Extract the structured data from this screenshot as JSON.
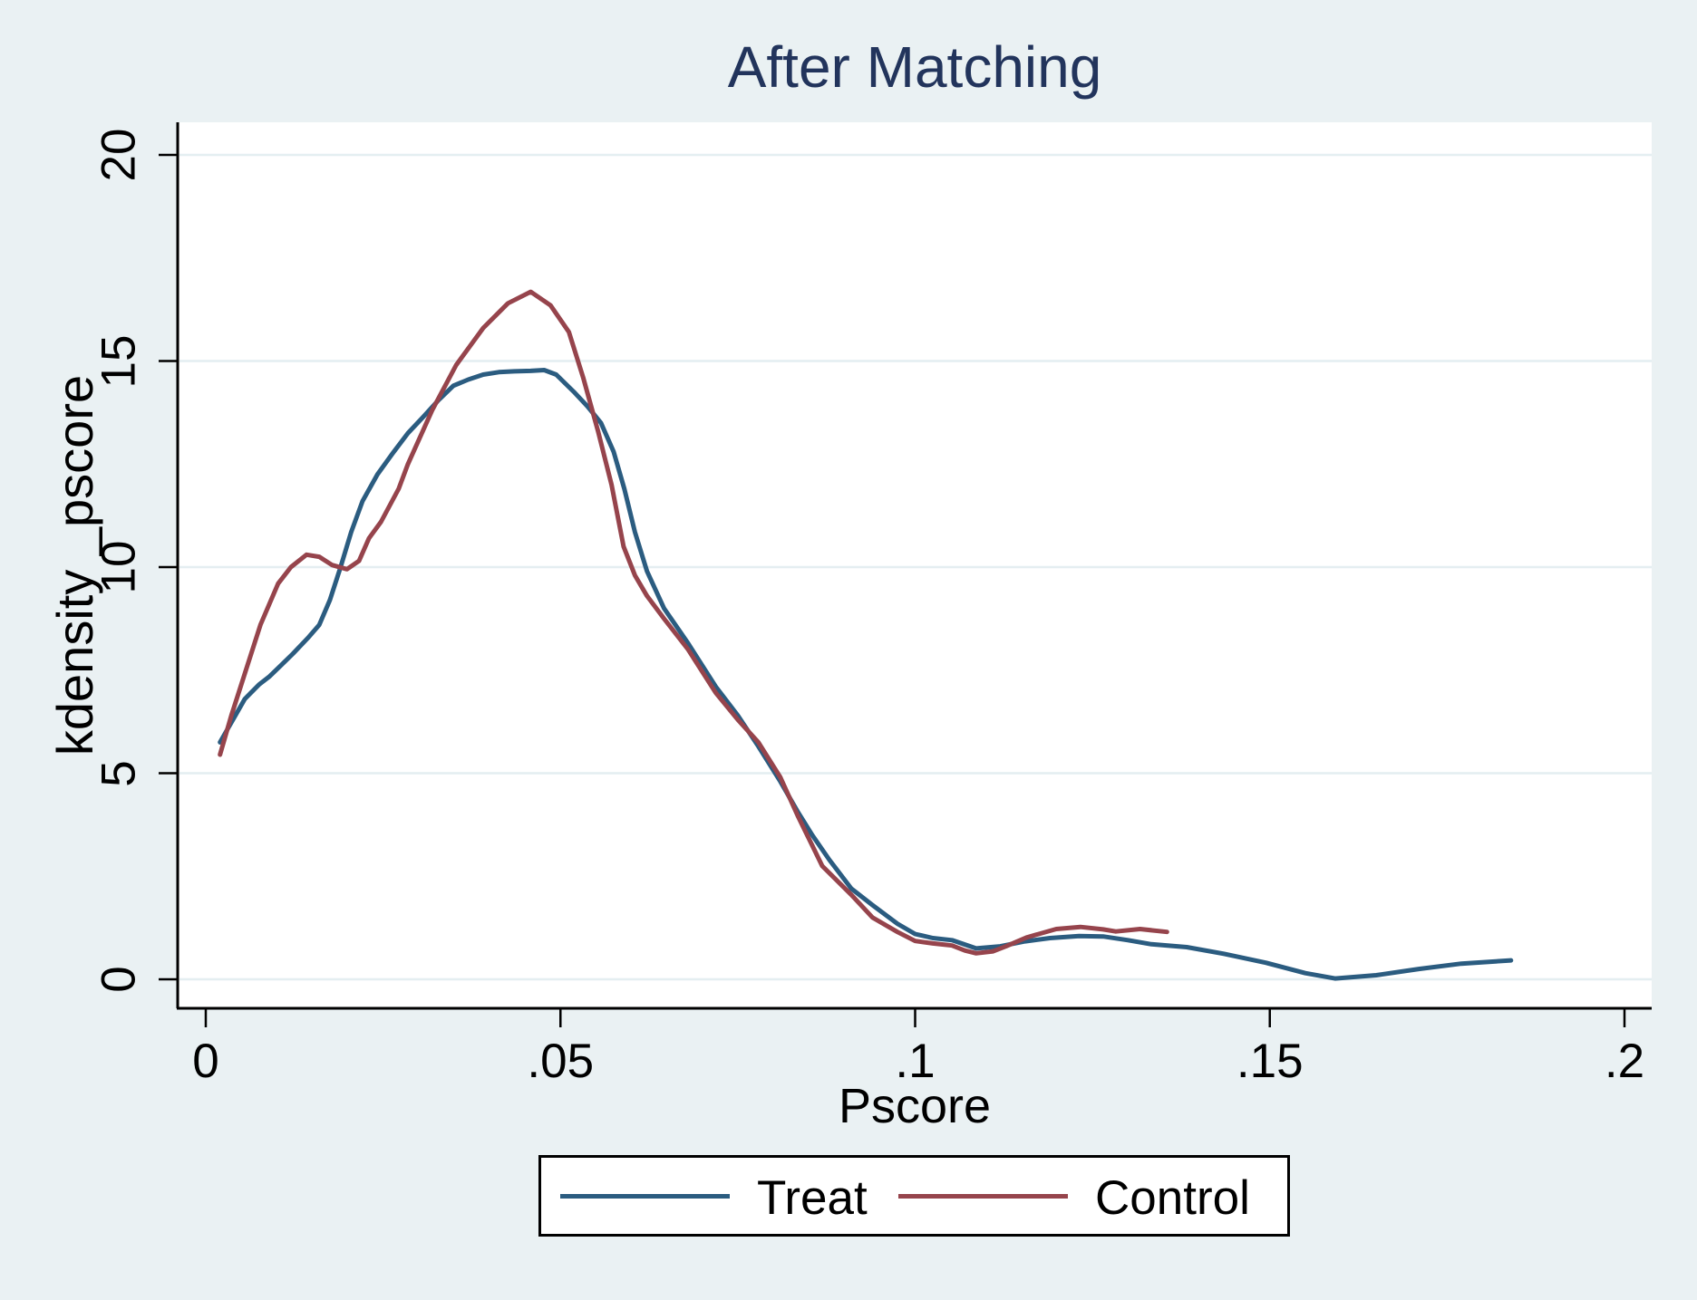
{
  "chart_data": {
    "type": "line",
    "title": "After Matching",
    "xlabel": "Pscore",
    "ylabel": "kdensity _pscore",
    "xlim": [
      0,
      0.2
    ],
    "ylim": [
      0,
      20
    ],
    "grid": "horizontal",
    "legend_position": "bottom",
    "x_ticks": [
      {
        "value": 0,
        "label": "0"
      },
      {
        "value": 0.05,
        "label": ".05"
      },
      {
        "value": 0.1,
        "label": ".1"
      },
      {
        "value": 0.15,
        "label": ".15"
      },
      {
        "value": 0.2,
        "label": ".2"
      }
    ],
    "y_ticks": [
      {
        "value": 0,
        "label": "0"
      },
      {
        "value": 5,
        "label": "5"
      },
      {
        "value": 10,
        "label": "10"
      },
      {
        "value": 15,
        "label": "15"
      },
      {
        "value": 20,
        "label": "20"
      }
    ],
    "series": [
      {
        "name": "Treat",
        "color": "#2B5C80",
        "points": [
          [
            0.002,
            5.75
          ],
          [
            0.004,
            6.35
          ],
          [
            0.0055,
            6.8
          ],
          [
            0.0075,
            7.15
          ],
          [
            0.009,
            7.35
          ],
          [
            0.0105,
            7.6
          ],
          [
            0.0123,
            7.9
          ],
          [
            0.0145,
            8.3
          ],
          [
            0.016,
            8.6
          ],
          [
            0.0175,
            9.2
          ],
          [
            0.019,
            10.0
          ],
          [
            0.0205,
            10.85
          ],
          [
            0.0221,
            11.6
          ],
          [
            0.0242,
            12.25
          ],
          [
            0.0263,
            12.75
          ],
          [
            0.0285,
            13.25
          ],
          [
            0.0307,
            13.65
          ],
          [
            0.0328,
            14.05
          ],
          [
            0.0349,
            14.4
          ],
          [
            0.037,
            14.55
          ],
          [
            0.0391,
            14.67
          ],
          [
            0.0413,
            14.73
          ],
          [
            0.0435,
            14.75
          ],
          [
            0.0458,
            14.76
          ],
          [
            0.0477,
            14.78
          ],
          [
            0.0494,
            14.67
          ],
          [
            0.0519,
            14.25
          ],
          [
            0.0538,
            13.9
          ],
          [
            0.0557,
            13.5
          ],
          [
            0.0575,
            12.8
          ],
          [
            0.059,
            11.9
          ],
          [
            0.0605,
            10.85
          ],
          [
            0.0622,
            9.9
          ],
          [
            0.0646,
            9.0
          ],
          [
            0.068,
            8.15
          ],
          [
            0.0719,
            7.1
          ],
          [
            0.075,
            6.4
          ],
          [
            0.0779,
            5.65
          ],
          [
            0.081,
            4.8
          ],
          [
            0.0835,
            4.05
          ],
          [
            0.0855,
            3.5
          ],
          [
            0.0879,
            2.9
          ],
          [
            0.091,
            2.2
          ],
          [
            0.094,
            1.8
          ],
          [
            0.0975,
            1.35
          ],
          [
            0.1,
            1.1
          ],
          [
            0.1025,
            1.0
          ],
          [
            0.1052,
            0.95
          ],
          [
            0.1086,
            0.75
          ],
          [
            0.112,
            0.8
          ],
          [
            0.1155,
            0.92
          ],
          [
            0.119,
            1.0
          ],
          [
            0.1231,
            1.05
          ],
          [
            0.1265,
            1.04
          ],
          [
            0.13,
            0.95
          ],
          [
            0.1333,
            0.85
          ],
          [
            0.1383,
            0.78
          ],
          [
            0.1435,
            0.62
          ],
          [
            0.1495,
            0.4
          ],
          [
            0.155,
            0.15
          ],
          [
            0.1592,
            0.02
          ],
          [
            0.165,
            0.1
          ],
          [
            0.171,
            0.25
          ],
          [
            0.177,
            0.38
          ],
          [
            0.184,
            0.46
          ]
        ]
      },
      {
        "name": "Control",
        "color": "#96444C",
        "points": [
          [
            0.002,
            5.45
          ],
          [
            0.0036,
            6.4
          ],
          [
            0.0051,
            7.2
          ],
          [
            0.0077,
            8.6
          ],
          [
            0.0102,
            9.6
          ],
          [
            0.012,
            10.0
          ],
          [
            0.0142,
            10.3
          ],
          [
            0.016,
            10.25
          ],
          [
            0.0178,
            10.05
          ],
          [
            0.0199,
            9.95
          ],
          [
            0.0216,
            10.15
          ],
          [
            0.023,
            10.7
          ],
          [
            0.0247,
            11.1
          ],
          [
            0.0272,
            11.9
          ],
          [
            0.0285,
            12.5
          ],
          [
            0.0319,
            13.8
          ],
          [
            0.0353,
            14.9
          ],
          [
            0.0391,
            15.8
          ],
          [
            0.0426,
            16.4
          ],
          [
            0.0458,
            16.68
          ],
          [
            0.0486,
            16.35
          ],
          [
            0.0512,
            15.7
          ],
          [
            0.0532,
            14.6
          ],
          [
            0.0553,
            13.3
          ],
          [
            0.0572,
            12.0
          ],
          [
            0.0589,
            10.5
          ],
          [
            0.0605,
            9.8
          ],
          [
            0.0622,
            9.3
          ],
          [
            0.0646,
            8.75
          ],
          [
            0.068,
            8.0
          ],
          [
            0.0719,
            6.95
          ],
          [
            0.075,
            6.3
          ],
          [
            0.0779,
            5.75
          ],
          [
            0.081,
            4.9
          ],
          [
            0.0835,
            3.95
          ],
          [
            0.0869,
            2.75
          ],
          [
            0.091,
            2.05
          ],
          [
            0.094,
            1.5
          ],
          [
            0.0975,
            1.15
          ],
          [
            0.1,
            0.93
          ],
          [
            0.1025,
            0.87
          ],
          [
            0.1052,
            0.82
          ],
          [
            0.107,
            0.7
          ],
          [
            0.1086,
            0.63
          ],
          [
            0.111,
            0.68
          ],
          [
            0.1128,
            0.8
          ],
          [
            0.1158,
            1.02
          ],
          [
            0.1199,
            1.22
          ],
          [
            0.1233,
            1.27
          ],
          [
            0.1265,
            1.21
          ],
          [
            0.1283,
            1.16
          ],
          [
            0.1317,
            1.22
          ],
          [
            0.1355,
            1.15
          ]
        ]
      }
    ]
  },
  "colors": {
    "background": "#EAF1F3",
    "plot_background": "#FFFFFF",
    "grid": "#E4EEF1",
    "axis": "#000000",
    "title": "#22345C",
    "tick_label": "#000000",
    "legend_background": "#FFFFFF",
    "legend_border": "#000000"
  }
}
